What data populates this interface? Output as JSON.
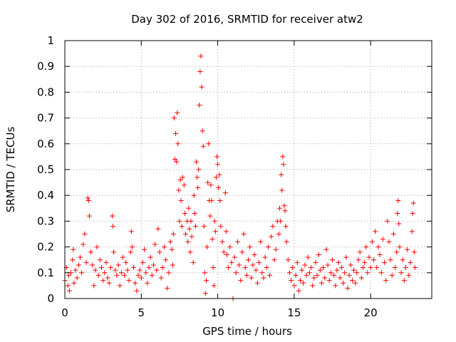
{
  "chart_data": {
    "type": "scatter",
    "title": "Day 302 of 2016, SRMTID for receiver atw2",
    "xlabel": "GPS time / hours",
    "ylabel": "SRMTID / TECUs",
    "xlim": [
      0,
      24
    ],
    "ylim": [
      0,
      1
    ],
    "xticks": [
      0,
      5,
      10,
      15,
      20
    ],
    "xtick_labels": [
      "0",
      "5",
      "10",
      "15",
      "20"
    ],
    "yticks": [
      0,
      0.1,
      0.2,
      0.3,
      0.4,
      0.5,
      0.6,
      0.7,
      0.8,
      0.9,
      1
    ],
    "ytick_labels": [
      "0",
      "0.1",
      "0.2",
      "0.3",
      "0.4",
      "0.5",
      "0.6",
      "0.7",
      "0.8",
      "0.9",
      "1"
    ],
    "grid": true,
    "legend": "none",
    "marker": "+",
    "series": [
      {
        "name": "atw2",
        "color": "#ff0000",
        "points": [
          [
            0.0,
            0.07
          ],
          [
            0.1,
            0.12
          ],
          [
            0.2,
            0.05
          ],
          [
            0.25,
            0.09
          ],
          [
            0.3,
            0.03
          ],
          [
            0.4,
            0.1
          ],
          [
            0.5,
            0.15
          ],
          [
            0.55,
            0.19
          ],
          [
            0.6,
            0.06
          ],
          [
            0.7,
            0.11
          ],
          [
            0.8,
            0.08
          ],
          [
            0.9,
            0.13
          ],
          [
            1.0,
            0.16
          ],
          [
            1.1,
            0.1
          ],
          [
            1.2,
            0.21
          ],
          [
            1.3,
            0.25
          ],
          [
            1.4,
            0.14
          ],
          [
            1.5,
            0.39
          ],
          [
            1.55,
            0.38
          ],
          [
            1.6,
            0.32
          ],
          [
            1.7,
            0.18
          ],
          [
            1.8,
            0.13
          ],
          [
            1.9,
            0.05
          ],
          [
            2.0,
            0.11
          ],
          [
            2.1,
            0.2
          ],
          [
            2.2,
            0.09
          ],
          [
            2.3,
            0.15
          ],
          [
            2.4,
            0.12
          ],
          [
            2.5,
            0.07
          ],
          [
            2.6,
            0.1
          ],
          [
            2.7,
            0.14
          ],
          [
            2.8,
            0.08
          ],
          [
            2.9,
            0.06
          ],
          [
            3.0,
            0.12
          ],
          [
            3.1,
            0.32
          ],
          [
            3.15,
            0.28
          ],
          [
            3.2,
            0.18
          ],
          [
            3.3,
            0.11
          ],
          [
            3.4,
            0.09
          ],
          [
            3.5,
            0.13
          ],
          [
            3.6,
            0.05
          ],
          [
            3.7,
            0.1
          ],
          [
            3.8,
            0.16
          ],
          [
            3.9,
            0.09
          ],
          [
            4.0,
            0.14
          ],
          [
            4.1,
            0.11
          ],
          [
            4.2,
            0.07
          ],
          [
            4.3,
            0.18
          ],
          [
            4.35,
            0.26
          ],
          [
            4.4,
            0.2
          ],
          [
            4.5,
            0.12
          ],
          [
            4.6,
            0.06
          ],
          [
            4.7,
            0.03
          ],
          [
            4.8,
            0.09
          ],
          [
            4.9,
            0.11
          ],
          [
            5.0,
            0.08
          ],
          [
            5.1,
            0.14
          ],
          [
            5.2,
            0.19
          ],
          [
            5.3,
            0.1
          ],
          [
            5.4,
            0.06
          ],
          [
            5.5,
            0.12
          ],
          [
            5.6,
            0.16
          ],
          [
            5.7,
            0.09
          ],
          [
            5.8,
            0.13
          ],
          [
            5.9,
            0.21
          ],
          [
            6.0,
            0.11
          ],
          [
            6.1,
            0.27
          ],
          [
            6.2,
            0.18
          ],
          [
            6.3,
            0.08
          ],
          [
            6.4,
            0.12
          ],
          [
            6.5,
            0.2
          ],
          [
            6.6,
            0.15
          ],
          [
            6.7,
            0.04
          ],
          [
            6.8,
            0.1
          ],
          [
            6.9,
            0.22
          ],
          [
            7.0,
            0.19
          ],
          [
            7.05,
            0.13
          ],
          [
            7.1,
            0.25
          ],
          [
            7.15,
            0.7
          ],
          [
            7.2,
            0.54
          ],
          [
            7.25,
            0.64
          ],
          [
            7.3,
            0.53
          ],
          [
            7.35,
            0.72
          ],
          [
            7.4,
            0.6
          ],
          [
            7.45,
            0.42
          ],
          [
            7.5,
            0.3
          ],
          [
            7.55,
            0.46
          ],
          [
            7.6,
            0.38
          ],
          [
            7.65,
            0.28
          ],
          [
            7.7,
            0.47
          ],
          [
            7.8,
            0.44
          ],
          [
            7.85,
            0.33
          ],
          [
            7.9,
            0.25
          ],
          [
            8.0,
            0.3
          ],
          [
            8.05,
            0.22
          ],
          [
            8.1,
            0.35
          ],
          [
            8.15,
            0.27
          ],
          [
            8.2,
            0.18
          ],
          [
            8.25,
            0.3
          ],
          [
            8.3,
            0.24
          ],
          [
            8.4,
            0.14
          ],
          [
            8.45,
            0.4
          ],
          [
            8.5,
            0.33
          ],
          [
            8.55,
            0.28
          ],
          [
            8.6,
            0.53
          ],
          [
            8.65,
            0.47
          ],
          [
            8.7,
            0.43
          ],
          [
            8.75,
            0.5
          ],
          [
            8.8,
            0.75
          ],
          [
            8.85,
            0.88
          ],
          [
            8.9,
            0.94
          ],
          [
            8.95,
            0.82
          ],
          [
            9.0,
            0.65
          ],
          [
            9.05,
            0.59
          ],
          [
            9.1,
            0.28
          ],
          [
            9.15,
            0.1
          ],
          [
            9.2,
            0.02
          ],
          [
            9.25,
            0.07
          ],
          [
            9.3,
            0.2
          ],
          [
            9.35,
            0.45
          ],
          [
            9.4,
            0.6
          ],
          [
            9.45,
            0.38
          ],
          [
            9.5,
            0.32
          ],
          [
            9.55,
            0.44
          ],
          [
            9.6,
            0.38
          ],
          [
            9.65,
            0.23
          ],
          [
            9.7,
            0.12
          ],
          [
            9.75,
            0.05
          ],
          [
            9.8,
            0.3
          ],
          [
            9.85,
            0.26
          ],
          [
            9.9,
            0.47
          ],
          [
            9.95,
            0.55
          ],
          [
            10.0,
            0.52
          ],
          [
            10.05,
            0.43
          ],
          [
            10.1,
            0.48
          ],
          [
            10.15,
            0.38
          ],
          [
            10.2,
            0.28
          ],
          [
            10.3,
            0.22
          ],
          [
            10.4,
            0.18
          ],
          [
            10.5,
            0.41
          ],
          [
            10.55,
            0.26
          ],
          [
            10.6,
            0.17
          ],
          [
            10.7,
            0.12
          ],
          [
            10.8,
            0.2
          ],
          [
            10.9,
            0.14
          ],
          [
            11.0,
            0.0
          ],
          [
            11.1,
            0.16
          ],
          [
            11.2,
            0.1
          ],
          [
            11.3,
            0.22
          ],
          [
            11.4,
            0.13
          ],
          [
            11.5,
            0.07
          ],
          [
            11.6,
            0.18
          ],
          [
            11.7,
            0.25
          ],
          [
            11.8,
            0.12
          ],
          [
            11.9,
            0.09
          ],
          [
            12.0,
            0.15
          ],
          [
            12.1,
            0.2
          ],
          [
            12.2,
            0.08
          ],
          [
            12.3,
            0.13
          ],
          [
            12.4,
            0.17
          ],
          [
            12.5,
            0.11
          ],
          [
            12.6,
            0.06
          ],
          [
            12.7,
            0.14
          ],
          [
            12.8,
            0.22
          ],
          [
            12.9,
            0.1
          ],
          [
            13.0,
            0.08
          ],
          [
            13.1,
            0.16
          ],
          [
            13.2,
            0.12
          ],
          [
            13.3,
            0.2
          ],
          [
            13.4,
            0.09
          ],
          [
            13.5,
            0.24
          ],
          [
            13.6,
            0.28
          ],
          [
            13.7,
            0.15
          ],
          [
            13.8,
            0.19
          ],
          [
            13.9,
            0.3
          ],
          [
            14.0,
            0.25
          ],
          [
            14.05,
            0.35
          ],
          [
            14.1,
            0.3
          ],
          [
            14.15,
            0.48
          ],
          [
            14.2,
            0.42
          ],
          [
            14.25,
            0.55
          ],
          [
            14.3,
            0.52
          ],
          [
            14.35,
            0.36
          ],
          [
            14.4,
            0.34
          ],
          [
            14.45,
            0.28
          ],
          [
            14.5,
            0.22
          ],
          [
            14.6,
            0.15
          ],
          [
            14.7,
            0.1
          ],
          [
            14.8,
            0.07
          ],
          [
            14.9,
            0.12
          ],
          [
            15.0,
            0.05
          ],
          [
            15.1,
            0.09
          ],
          [
            15.2,
            0.14
          ],
          [
            15.3,
            0.03
          ],
          [
            15.4,
            0.07
          ],
          [
            15.5,
            0.11
          ],
          [
            15.6,
            0.06
          ],
          [
            15.7,
            0.13
          ],
          [
            15.8,
            0.09
          ],
          [
            15.9,
            0.16
          ],
          [
            16.0,
            0.1
          ],
          [
            16.1,
            0.12
          ],
          [
            16.2,
            0.05
          ],
          [
            16.3,
            0.08
          ],
          [
            16.4,
            0.14
          ],
          [
            16.5,
            0.09
          ],
          [
            16.6,
            0.17
          ],
          [
            16.7,
            0.11
          ],
          [
            16.8,
            0.06
          ],
          [
            16.9,
            0.12
          ],
          [
            17.0,
            0.08
          ],
          [
            17.1,
            0.19
          ],
          [
            17.2,
            0.13
          ],
          [
            17.3,
            0.07
          ],
          [
            17.4,
            0.1
          ],
          [
            17.5,
            0.15
          ],
          [
            17.6,
            0.09
          ],
          [
            17.7,
            0.05
          ],
          [
            17.8,
            0.11
          ],
          [
            17.9,
            0.14
          ],
          [
            18.0,
            0.08
          ],
          [
            18.1,
            0.12
          ],
          [
            18.2,
            0.06
          ],
          [
            18.3,
            0.1
          ],
          [
            18.4,
            0.16
          ],
          [
            18.5,
            0.04
          ],
          [
            18.6,
            0.09
          ],
          [
            18.7,
            0.13
          ],
          [
            18.8,
            0.07
          ],
          [
            18.9,
            0.11
          ],
          [
            19.0,
            0.06
          ],
          [
            19.1,
            0.1
          ],
          [
            19.2,
            0.15
          ],
          [
            19.3,
            0.18
          ],
          [
            19.4,
            0.08
          ],
          [
            19.5,
            0.12
          ],
          [
            19.6,
            0.14
          ],
          [
            19.7,
            0.2
          ],
          [
            19.8,
            0.1
          ],
          [
            19.9,
            0.16
          ],
          [
            20.0,
            0.12
          ],
          [
            20.1,
            0.22
          ],
          [
            20.2,
            0.15
          ],
          [
            20.3,
            0.26
          ],
          [
            20.4,
            0.12
          ],
          [
            20.5,
            0.2
          ],
          [
            20.6,
            0.17
          ],
          [
            20.7,
            0.1
          ],
          [
            20.8,
            0.23
          ],
          [
            20.9,
            0.14
          ],
          [
            21.0,
            0.07
          ],
          [
            21.1,
            0.3
          ],
          [
            21.2,
            0.22
          ],
          [
            21.3,
            0.15
          ],
          [
            21.4,
            0.09
          ],
          [
            21.5,
            0.25
          ],
          [
            21.6,
            0.12
          ],
          [
            21.7,
            0.18
          ],
          [
            21.75,
            0.33
          ],
          [
            21.8,
            0.38
          ],
          [
            21.85,
            0.29
          ],
          [
            21.9,
            0.2
          ],
          [
            22.0,
            0.1
          ],
          [
            22.1,
            0.15
          ],
          [
            22.2,
            0.07
          ],
          [
            22.3,
            0.12
          ],
          [
            22.4,
            0.19
          ],
          [
            22.5,
            0.09
          ],
          [
            22.6,
            0.14
          ],
          [
            22.7,
            0.26
          ],
          [
            22.75,
            0.33
          ],
          [
            22.8,
            0.37
          ],
          [
            22.85,
            0.18
          ],
          [
            22.9,
            0.12
          ]
        ]
      }
    ]
  }
}
